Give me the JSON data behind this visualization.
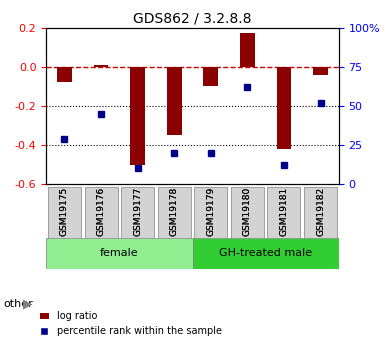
{
  "title": "GDS862 / 3.2.8.8",
  "samples": [
    "GSM19175",
    "GSM19176",
    "GSM19177",
    "GSM19178",
    "GSM19179",
    "GSM19180",
    "GSM19181",
    "GSM19182"
  ],
  "log_ratio": [
    -0.08,
    0.01,
    -0.5,
    -0.35,
    -0.1,
    0.17,
    -0.42,
    -0.04
  ],
  "percentile_rank": [
    29,
    45,
    10,
    20,
    20,
    62,
    12,
    52
  ],
  "bar_color": "#8B0000",
  "dot_color": "#00008B",
  "dashed_line_color": "#CC0000",
  "groups": [
    {
      "label": "female",
      "start": 0,
      "end": 3,
      "color": "#90EE90"
    },
    {
      "label": "GH-treated male",
      "start": 4,
      "end": 7,
      "color": "#32CD32"
    }
  ],
  "ylim_left": [
    -0.6,
    0.2
  ],
  "ylim_right": [
    0,
    100
  ],
  "yticks_left": [
    -0.6,
    -0.4,
    -0.2,
    0.0,
    0.2
  ],
  "yticks_right": [
    0,
    25,
    50,
    75,
    100
  ],
  "ytick_labels_right": [
    "0",
    "25",
    "50",
    "75",
    "100%"
  ],
  "legend_items": [
    "log ratio",
    "percentile rank within the sample"
  ],
  "other_label": "other"
}
